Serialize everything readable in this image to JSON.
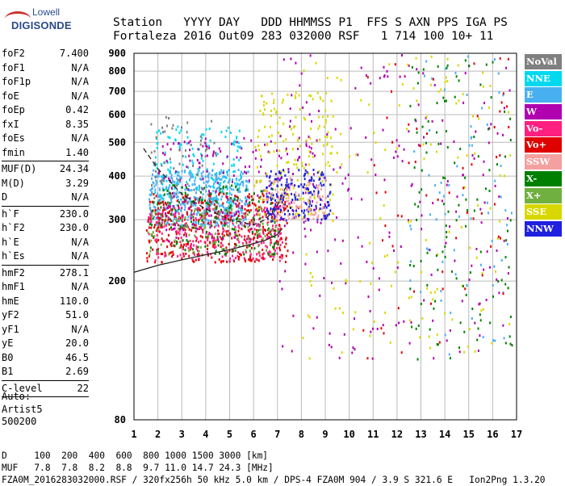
{
  "logo": {
    "line1": "Lowell",
    "line2": "DIGISONDE"
  },
  "header": {
    "labels": "Station   YYYY DAY   DDD HHMMSS P1  FFS S AXN PPS IGA PS",
    "values": "Fortaleza 2016 Out09 283 032000 RSF   1 714 100 10+ 11"
  },
  "parameters": [
    {
      "group": [
        {
          "name": "foF2",
          "value": "7.400"
        },
        {
          "name": "foF1",
          "value": "N/A"
        },
        {
          "name": "foF1p",
          "value": "N/A"
        },
        {
          "name": "foE",
          "value": "N/A"
        },
        {
          "name": "foEp",
          "value": "0.42"
        },
        {
          "name": "fxI",
          "value": "8.35"
        },
        {
          "name": "foEs",
          "value": "N/A"
        },
        {
          "name": "fmin",
          "value": "1.40"
        }
      ]
    },
    {
      "group": [
        {
          "name": "MUF(D)",
          "value": "24.34"
        },
        {
          "name": "M(D)",
          "value": "3.29"
        },
        {
          "name": "D",
          "value": "N/A"
        }
      ]
    },
    {
      "group": [
        {
          "name": "h`F",
          "value": "230.0"
        },
        {
          "name": "h`F2",
          "value": "230.0"
        },
        {
          "name": "h`E",
          "value": "N/A"
        },
        {
          "name": "h`Es",
          "value": "N/A"
        }
      ]
    },
    {
      "group": [
        {
          "name": "hmF2",
          "value": "278.1"
        },
        {
          "name": "hmF1",
          "value": "N/A"
        },
        {
          "name": "hmE",
          "value": "110.0"
        },
        {
          "name": "yF2",
          "value": "51.0"
        },
        {
          "name": "yF1",
          "value": "N/A"
        },
        {
          "name": "yE",
          "value": "20.0"
        },
        {
          "name": "B0",
          "value": "46.5"
        },
        {
          "name": "B1",
          "value": "2.69"
        }
      ]
    },
    {
      "group": [
        {
          "name": "C-level",
          "value": "22"
        }
      ]
    }
  ],
  "auto": [
    "Auto:",
    "Artist5",
    "500200"
  ],
  "legend": [
    {
      "label": "NoVal",
      "color": "#808080"
    },
    {
      "label": "NNE",
      "color": "#00d8f0"
    },
    {
      "label": "E",
      "color": "#48b0f0"
    },
    {
      "label": "W",
      "color": "#b000b0"
    },
    {
      "label": "Vo-",
      "color": "#ff2080"
    },
    {
      "label": "Vo+",
      "color": "#e00000"
    },
    {
      "label": "SSW",
      "color": "#f4a0a0"
    },
    {
      "label": "X-",
      "color": "#008000"
    },
    {
      "label": "X+",
      "color": "#70b040"
    },
    {
      "label": "SSE",
      "color": "#d8d800"
    },
    {
      "label": "NNW",
      "color": "#2020e0"
    }
  ],
  "footer": {
    "line1": "D     100  200  400  600  800 1000 1500 3000 [km]",
    "line2": "MUF   7.8  7.8  8.2  8.8  9.7 11.0 14.7 24.3 [MHz]",
    "line3": "FZA0M_2016283032000.RSF / 320fx256h 50 kHz 5.0 km / DPS-4 FZA0M 904 / 3.9 S 321.6 E   Ion2Png 1.3.20"
  },
  "chart_data": {
    "type": "scatter",
    "xlim": [
      1,
      17
    ],
    "ylim": [
      80,
      900
    ],
    "y_scale": "log",
    "x_ticks": [
      1,
      2,
      3,
      4,
      5,
      6,
      7,
      8,
      9,
      10,
      11,
      12,
      13,
      14,
      15,
      16,
      17
    ],
    "y_ticks": [
      80,
      200,
      300,
      400,
      500,
      600,
      700,
      800,
      900
    ],
    "grid": true,
    "traces": [
      {
        "name": "",
        "style": "solid",
        "x": [
          1.0,
          2.0,
          3.0,
          4.0,
          5.0,
          6.0,
          6.5,
          7.0,
          7.2
        ],
        "y": [
          212,
          222,
          230,
          238,
          246,
          256,
          262,
          272,
          283
        ]
      },
      {
        "name": "",
        "style": "dashed",
        "x": [
          1.4,
          2.0,
          3.0,
          4.0,
          5.0,
          6.0,
          6.5,
          7.0,
          7.35
        ],
        "y": [
          480,
          420,
          355,
          322,
          300,
          290,
          300,
          330,
          372
        ]
      }
    ],
    "echo_clusters": [
      {
        "color": "#48b0f0",
        "x": [
          1.6,
          5.8
        ],
        "y": [
          290,
          420
        ],
        "n": 500
      },
      {
        "color": "#00d8f0",
        "x": [
          1.8,
          5.5
        ],
        "y": [
          330,
          560
        ],
        "n": 160
      },
      {
        "color": "#e00000",
        "x": [
          1.5,
          7.4
        ],
        "y": [
          228,
          360
        ],
        "n": 420
      },
      {
        "color": "#ff2080",
        "x": [
          1.5,
          7.2
        ],
        "y": [
          230,
          330
        ],
        "n": 260
      },
      {
        "color": "#008000",
        "x": [
          1.6,
          7.0
        ],
        "y": [
          240,
          380
        ],
        "n": 160
      },
      {
        "color": "#b000b0",
        "x": [
          2.0,
          8.8
        ],
        "y": [
          260,
          520
        ],
        "n": 200
      },
      {
        "color": "#d8d800",
        "x": [
          6.0,
          9.3
        ],
        "y": [
          300,
          700
        ],
        "n": 180
      },
      {
        "color": "#2020e0",
        "x": [
          6.5,
          9.2
        ],
        "y": [
          300,
          420
        ],
        "n": 200
      },
      {
        "color": "#f4a0a0",
        "x": [
          6.5,
          9.0
        ],
        "y": [
          300,
          400
        ],
        "n": 100
      },
      {
        "color": "#808080",
        "x": [
          1.6,
          4.5
        ],
        "y": [
          330,
          600
        ],
        "n": 60
      },
      {
        "color": "#70b040",
        "x": [
          1.5,
          7.0
        ],
        "y": [
          240,
          330
        ],
        "n": 100
      },
      {
        "color": "#b000b0",
        "x": [
          7.0,
          16.8
        ],
        "y": [
          120,
          900
        ],
        "n": 200
      },
      {
        "color": "#d8d800",
        "x": [
          8.0,
          16.8
        ],
        "y": [
          120,
          900
        ],
        "n": 140
      },
      {
        "color": "#008000",
        "x": [
          12.5,
          16.8
        ],
        "y": [
          120,
          900
        ],
        "n": 120
      },
      {
        "color": "#48b0f0",
        "x": [
          12.5,
          16.8
        ],
        "y": [
          120,
          900
        ],
        "n": 70
      },
      {
        "color": "#e00000",
        "x": [
          10.0,
          16.8
        ],
        "y": [
          120,
          900
        ],
        "n": 60
      }
    ]
  }
}
